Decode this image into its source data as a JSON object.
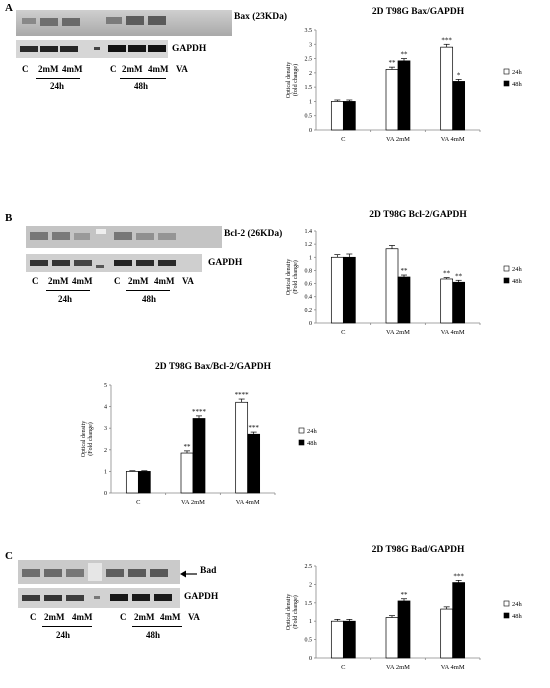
{
  "panels": [
    {
      "letter": "A"
    },
    {
      "letter": "B"
    },
    {
      "letter": "C"
    }
  ],
  "blots": {
    "A": {
      "protein_label": "Bax (23KDa)",
      "loading_label": "GAPDH",
      "lanes_left": [
        "C",
        "2mM",
        "4mM"
      ],
      "lanes_right": [
        "C",
        "2mM",
        "4mM"
      ],
      "lane_suffix": "VA",
      "time_left": "24h",
      "time_right": "48h"
    },
    "B": {
      "protein_label": "Bcl-2 (26KDa)",
      "loading_label": "GAPDH",
      "lanes_left": [
        "C",
        "2mM",
        "4mM"
      ],
      "lanes_right": [
        "C",
        "2mM",
        "4mM"
      ],
      "lane_suffix": "VA",
      "time_left": "24h",
      "time_right": "48h"
    },
    "C": {
      "protein_label": "Bad",
      "loading_label": "GAPDH",
      "lanes_left": [
        "C",
        "2mM",
        "4mM"
      ],
      "lanes_right": [
        "C",
        "2mM",
        "4mM"
      ],
      "lane_suffix": "VA",
      "time_left": "24h",
      "time_right": "48h"
    }
  },
  "chart_data": [
    {
      "id": "bax",
      "type": "bar",
      "title": "2D T98G Bax/GAPDH",
      "ylabel": "Optical density (fold change)",
      "ylim": [
        0,
        3.5
      ],
      "yticks": [
        "0",
        "0.5",
        "1",
        "1.5",
        "2",
        "2.5",
        "3",
        "3.5"
      ],
      "categories": [
        "C",
        "VA 2mM",
        "VA 4mM"
      ],
      "series": [
        {
          "name": "24h",
          "values": [
            1.0,
            2.12,
            2.9
          ],
          "errors": [
            0.05,
            0.08,
            0.1
          ],
          "sig": [
            "",
            "**",
            "***"
          ],
          "fill": "#ffffff"
        },
        {
          "name": "48h",
          "values": [
            1.0,
            2.42,
            1.7
          ],
          "errors": [
            0.05,
            0.08,
            0.07
          ],
          "sig": [
            "",
            "**",
            "*"
          ],
          "fill": "#000000"
        }
      ],
      "legend_position": "right",
      "grid": false
    },
    {
      "id": "bcl2",
      "type": "bar",
      "title": "2D T98G Bcl-2/GAPDH",
      "ylabel": "Optical density (Fold change)",
      "ylim": [
        0,
        1.4
      ],
      "yticks": [
        "0",
        "0.2",
        "0.4",
        "0.6",
        "0.8",
        "1",
        "1.2",
        "1.4"
      ],
      "categories": [
        "C",
        "VA 2mM",
        "VA 4mM"
      ],
      "series": [
        {
          "name": "24h",
          "values": [
            1.0,
            1.13,
            0.67
          ],
          "errors": [
            0.04,
            0.05,
            0.02
          ],
          "sig": [
            "",
            "",
            "**"
          ],
          "fill": "#ffffff"
        },
        {
          "name": "48h",
          "values": [
            1.0,
            0.7,
            0.62
          ],
          "errors": [
            0.05,
            0.03,
            0.03
          ],
          "sig": [
            "",
            "**",
            "**"
          ],
          "fill": "#000000"
        }
      ],
      "legend_position": "right",
      "grid": false
    },
    {
      "id": "baxbcl2",
      "type": "bar",
      "title": "2D T98G Bax/Bcl-2/GAPDH",
      "ylabel": "Optical density (Fold change)",
      "ylim": [
        0,
        5
      ],
      "yticks": [
        "0",
        "1",
        "2",
        "3",
        "4",
        "5"
      ],
      "categories": [
        "C",
        "VA 2mM",
        "VA 4mM"
      ],
      "series": [
        {
          "name": "24h",
          "values": [
            1.0,
            1.85,
            4.2
          ],
          "errors": [
            0.03,
            0.1,
            0.15
          ],
          "sig": [
            "",
            "**",
            "****"
          ],
          "fill": "#ffffff"
        },
        {
          "name": "48h",
          "values": [
            1.0,
            3.45,
            2.72
          ],
          "errors": [
            0.03,
            0.12,
            0.1
          ],
          "sig": [
            "",
            "****",
            "***"
          ],
          "fill": "#000000"
        }
      ],
      "legend_position": "right",
      "grid": false
    },
    {
      "id": "bad",
      "type": "bar",
      "title": "2D T98G Bad/GAPDH",
      "ylabel": "Optical density (Fold change)",
      "ylim": [
        0,
        2.5
      ],
      "yticks": [
        "0",
        "0.5",
        "1",
        "1.5",
        "2",
        "2.5"
      ],
      "categories": [
        "C",
        "VA 2mM",
        "VA 4mM"
      ],
      "series": [
        {
          "name": "24h",
          "values": [
            1.0,
            1.1,
            1.33
          ],
          "errors": [
            0.05,
            0.05,
            0.06
          ],
          "sig": [
            "",
            "",
            ""
          ],
          "fill": "#ffffff"
        },
        {
          "name": "48h",
          "values": [
            1.0,
            1.55,
            2.05
          ],
          "errors": [
            0.05,
            0.06,
            0.06
          ],
          "sig": [
            "",
            "**",
            "***"
          ],
          "fill": "#000000"
        }
      ],
      "legend_position": "right",
      "grid": false
    }
  ]
}
